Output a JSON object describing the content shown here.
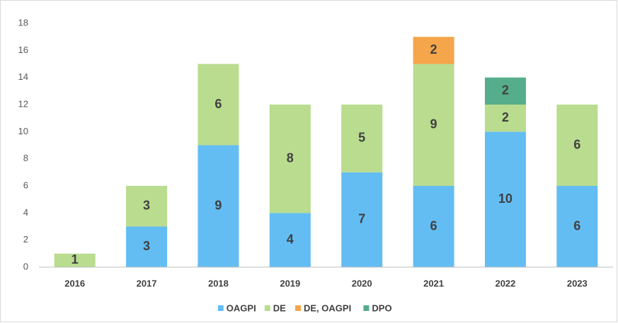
{
  "chart_data": {
    "type": "stacked_bar",
    "categories": [
      "2016",
      "2017",
      "2018",
      "2019",
      "2020",
      "2021",
      "2022",
      "2023"
    ],
    "series": [
      {
        "name": "OAGPI",
        "color": "#63bdf3",
        "values": [
          0,
          3,
          9,
          4,
          7,
          6,
          10,
          6
        ]
      },
      {
        "name": "DE",
        "color": "#b9dc8f",
        "values": [
          1,
          3,
          6,
          8,
          5,
          9,
          2,
          6
        ]
      },
      {
        "name": "DE, OAGPI",
        "color": "#f5a54a",
        "values": [
          0,
          0,
          0,
          0,
          0,
          2,
          0,
          0
        ]
      },
      {
        "name": "DPO",
        "color": "#55ad8b",
        "values": [
          0,
          0,
          0,
          0,
          0,
          0,
          2,
          0
        ]
      }
    ],
    "ylim": [
      0,
      18
    ],
    "yticks": [
      0,
      2,
      4,
      6,
      8,
      10,
      12,
      14,
      16,
      18
    ],
    "grid": false,
    "legend": "bottom"
  }
}
